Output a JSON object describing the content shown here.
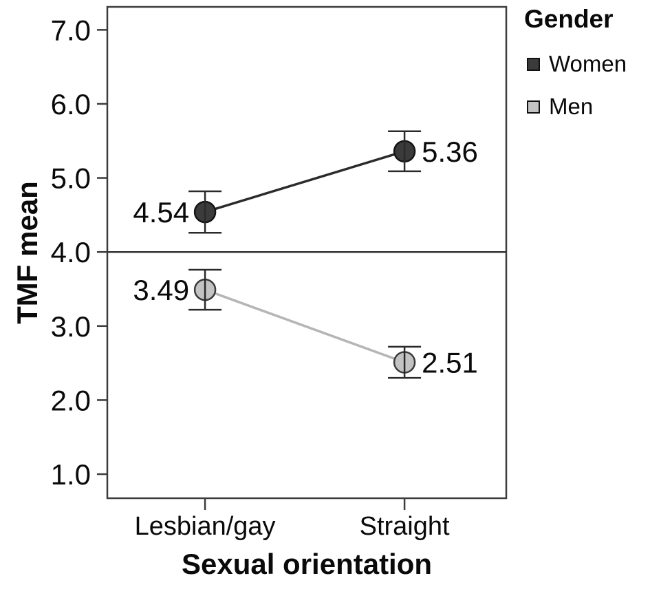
{
  "chart_data": {
    "type": "line",
    "title": "",
    "xlabel": "Sexual orientation",
    "ylabel": "TMF mean",
    "categories": [
      "Lesbian/gay",
      "Straight"
    ],
    "y_ticks": [
      7.0,
      6.0,
      5.0,
      4.0,
      3.0,
      2.0,
      1.0
    ],
    "y_tick_labels": [
      "7.0",
      "6.0",
      "5.0",
      "4.0",
      "3.0",
      "2.0",
      "1.0"
    ],
    "ylim": [
      0.675,
      7.31
    ],
    "reference_line_y": 4.0,
    "grid": false,
    "legend": {
      "title": "Gender",
      "position": "top-right"
    },
    "colors": {
      "axis": "#3c3c3c",
      "error_bar": "#2a2a2a",
      "text": "#0a0a0a",
      "reference_line": "#333333"
    },
    "series": [
      {
        "name": "Women",
        "marker_color": "#3b3b3b",
        "marker_stroke": "#141414",
        "line_color": "#2b2b2b",
        "values": [
          4.54,
          5.36
        ],
        "value_labels": [
          "4.54",
          "5.36"
        ],
        "error": [
          0.28,
          0.27
        ],
        "label_sides": [
          "left",
          "right"
        ]
      },
      {
        "name": "Men",
        "marker_color": "#c3c3c3",
        "marker_stroke": "#3a3a3a",
        "line_color": "#b5b5b5",
        "values": [
          3.49,
          2.51
        ],
        "value_labels": [
          "3.49",
          "2.51"
        ],
        "error": [
          0.27,
          0.21
        ],
        "label_sides": [
          "left",
          "right"
        ]
      }
    ]
  }
}
